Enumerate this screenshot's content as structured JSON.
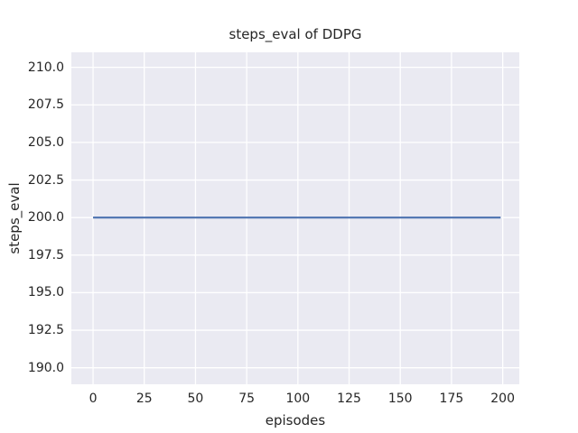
{
  "chart_data": {
    "type": "line",
    "title": "steps_eval of DDPG",
    "xlabel": "episodes",
    "ylabel": "steps_eval",
    "xtick_values": [
      0,
      25,
      50,
      75,
      100,
      125,
      150,
      175,
      200
    ],
    "xtick_labels": [
      "0",
      "25",
      "50",
      "75",
      "100",
      "125",
      "150",
      "175",
      "200"
    ],
    "ytick_values": [
      190,
      192.5,
      195,
      197.5,
      200,
      202.5,
      205,
      207.5,
      210
    ],
    "ytick_labels": [
      "190.0",
      "192.5",
      "195.0",
      "197.5",
      "200.0",
      "202.5",
      "205.0",
      "207.5",
      "210.0"
    ],
    "xlim": [
      -10.6,
      208.1
    ],
    "ylim": [
      188.9,
      211.0
    ],
    "grid": true,
    "legend_position": "none",
    "series": [
      {
        "name": "steps_eval",
        "color": "#4c72b0",
        "x": [
          0,
          199
        ],
        "y": [
          200,
          200
        ]
      }
    ],
    "style": {
      "figure_background": "#ffffff",
      "axes_background": "#eaeaf2",
      "grid_color": "#ffffff",
      "text_color": "#262626"
    }
  }
}
